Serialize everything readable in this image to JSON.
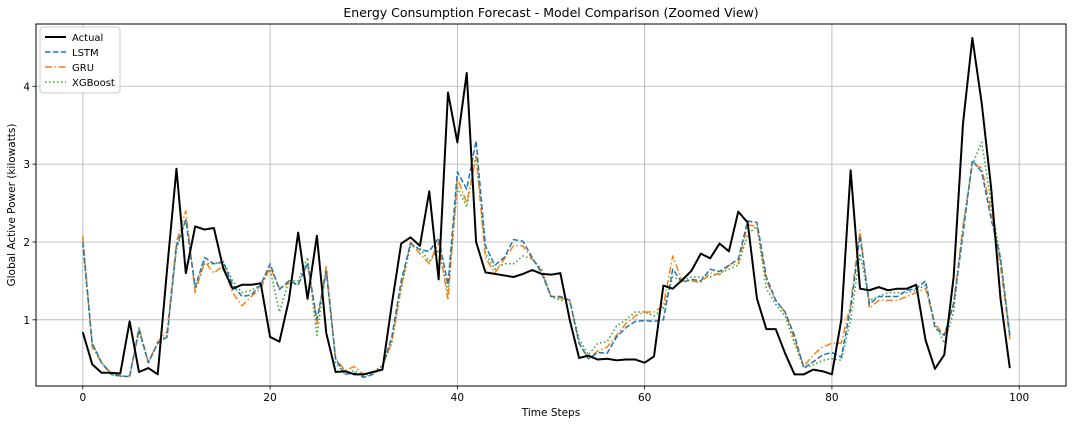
{
  "chart_data": {
    "type": "line",
    "title": "Energy Consumption Forecast - Model Comparison (Zoomed View)",
    "xlabel": "Time Steps",
    "ylabel": "Global Active Power (kilowatts)",
    "xlim": [
      -5,
      105
    ],
    "ylim": [
      0.15,
      4.8
    ],
    "xticks": [
      0,
      20,
      40,
      60,
      80,
      100
    ],
    "yticks": [
      1,
      2,
      3,
      4
    ],
    "grid": true,
    "legend_position": "top-left",
    "series": [
      {
        "name": "Actual",
        "color": "#000000",
        "style": "solid",
        "values": [
          0.84,
          0.43,
          0.32,
          0.32,
          0.31,
          0.98,
          0.33,
          0.38,
          0.3,
          1.65,
          2.94,
          1.6,
          2.2,
          2.16,
          2.18,
          1.66,
          1.4,
          1.45,
          1.45,
          1.47,
          0.78,
          0.72,
          1.25,
          2.12,
          1.27,
          2.08,
          0.83,
          0.33,
          0.34,
          0.3,
          0.3,
          0.33,
          0.36,
          1.2,
          1.98,
          2.06,
          1.95,
          2.65,
          1.52,
          3.92,
          3.28,
          4.17,
          2.0,
          1.61,
          1.59,
          1.57,
          1.55,
          1.59,
          1.64,
          1.59,
          1.58,
          1.6,
          1.0,
          0.51,
          0.54,
          0.49,
          0.5,
          0.48,
          0.49,
          0.49,
          0.45,
          0.53,
          1.44,
          1.4,
          1.51,
          1.63,
          1.85,
          1.79,
          1.98,
          1.88,
          2.39,
          2.25,
          1.27,
          0.88,
          0.88,
          0.57,
          0.3,
          0.3,
          0.36,
          0.34,
          0.3,
          1.0,
          2.92,
          1.4,
          1.38,
          1.42,
          1.38,
          1.4,
          1.4,
          1.45,
          0.74,
          0.37,
          0.55,
          1.55,
          3.52,
          4.62,
          3.78,
          2.7,
          1.28,
          0.38
        ]
      },
      {
        "name": "LSTM",
        "color": "#1f77b4",
        "style": "dashed",
        "values": [
          2.0,
          0.7,
          0.45,
          0.3,
          0.28,
          0.27,
          0.88,
          0.45,
          0.7,
          0.78,
          1.95,
          2.28,
          1.42,
          1.8,
          1.72,
          1.74,
          1.45,
          1.3,
          1.32,
          1.45,
          1.72,
          1.39,
          1.5,
          1.45,
          1.73,
          1.0,
          1.62,
          0.5,
          0.3,
          0.32,
          0.26,
          0.3,
          0.4,
          0.78,
          1.5,
          1.98,
          1.9,
          1.88,
          2.05,
          1.45,
          2.9,
          2.68,
          3.3,
          1.95,
          1.7,
          1.8,
          2.03,
          2.01,
          1.8,
          1.6,
          1.3,
          1.3,
          1.25,
          0.7,
          0.5,
          0.58,
          0.57,
          0.78,
          0.9,
          0.98,
          0.99,
          0.98,
          1.0,
          1.65,
          1.48,
          1.52,
          1.5,
          1.65,
          1.62,
          1.7,
          1.78,
          2.27,
          2.25,
          1.55,
          1.25,
          1.1,
          0.8,
          0.38,
          0.46,
          0.55,
          0.58,
          0.52,
          1.15,
          2.08,
          1.2,
          1.3,
          1.3,
          1.3,
          1.38,
          1.4,
          1.5,
          0.9,
          0.8,
          1.2,
          2.1,
          3.05,
          2.9,
          2.3,
          1.8,
          0.8
        ]
      },
      {
        "name": "GRU",
        "color": "#ff7f0e",
        "style": "dashdot",
        "values": [
          2.08,
          0.65,
          0.45,
          0.32,
          0.28,
          0.27,
          0.9,
          0.45,
          0.72,
          0.85,
          2.0,
          2.4,
          1.35,
          1.75,
          1.6,
          1.7,
          1.35,
          1.18,
          1.3,
          1.4,
          1.68,
          1.4,
          1.47,
          1.45,
          1.72,
          0.95,
          1.7,
          0.5,
          0.35,
          0.4,
          0.3,
          0.32,
          0.4,
          0.72,
          1.42,
          2.0,
          1.85,
          1.72,
          2.0,
          1.25,
          2.82,
          2.5,
          3.1,
          1.8,
          1.6,
          1.78,
          1.95,
          1.95,
          1.78,
          1.62,
          1.3,
          1.28,
          1.25,
          0.7,
          0.5,
          0.6,
          0.65,
          0.8,
          0.95,
          1.05,
          1.1,
          1.1,
          1.18,
          1.82,
          1.5,
          1.5,
          1.48,
          1.6,
          1.58,
          1.7,
          1.72,
          2.22,
          2.2,
          1.5,
          1.25,
          1.1,
          0.75,
          0.4,
          0.55,
          0.65,
          0.7,
          0.7,
          1.2,
          2.15,
          1.15,
          1.25,
          1.25,
          1.25,
          1.3,
          1.35,
          1.4,
          0.95,
          0.8,
          1.22,
          2.2,
          3.0,
          2.95,
          2.4,
          1.7,
          0.75
        ]
      },
      {
        "name": "XGBoost",
        "color": "#2ca02c",
        "style": "dotted",
        "values": [
          1.95,
          0.7,
          0.45,
          0.3,
          0.27,
          0.28,
          0.85,
          0.45,
          0.7,
          0.8,
          1.9,
          2.3,
          1.4,
          1.72,
          1.72,
          1.75,
          1.5,
          1.35,
          1.38,
          1.45,
          1.65,
          1.1,
          1.5,
          1.5,
          1.8,
          0.8,
          1.65,
          0.45,
          0.3,
          0.35,
          0.28,
          0.32,
          0.42,
          0.7,
          1.4,
          1.95,
          1.92,
          1.75,
          1.9,
          1.35,
          2.7,
          2.45,
          3.12,
          1.85,
          1.65,
          1.72,
          1.72,
          1.82,
          1.78,
          1.65,
          1.3,
          1.25,
          1.25,
          0.75,
          0.55,
          0.7,
          0.72,
          0.92,
          1.0,
          1.1,
          1.1,
          1.05,
          1.15,
          1.55,
          1.5,
          1.55,
          1.55,
          1.55,
          1.6,
          1.65,
          1.7,
          2.1,
          2.2,
          1.4,
          1.2,
          1.05,
          0.7,
          0.38,
          0.42,
          0.48,
          0.5,
          0.48,
          1.0,
          1.85,
          1.25,
          1.3,
          1.35,
          1.35,
          1.35,
          1.38,
          1.45,
          0.95,
          0.7,
          1.1,
          2.2,
          3.0,
          3.28,
          2.5,
          1.8,
          0.8
        ]
      }
    ]
  }
}
